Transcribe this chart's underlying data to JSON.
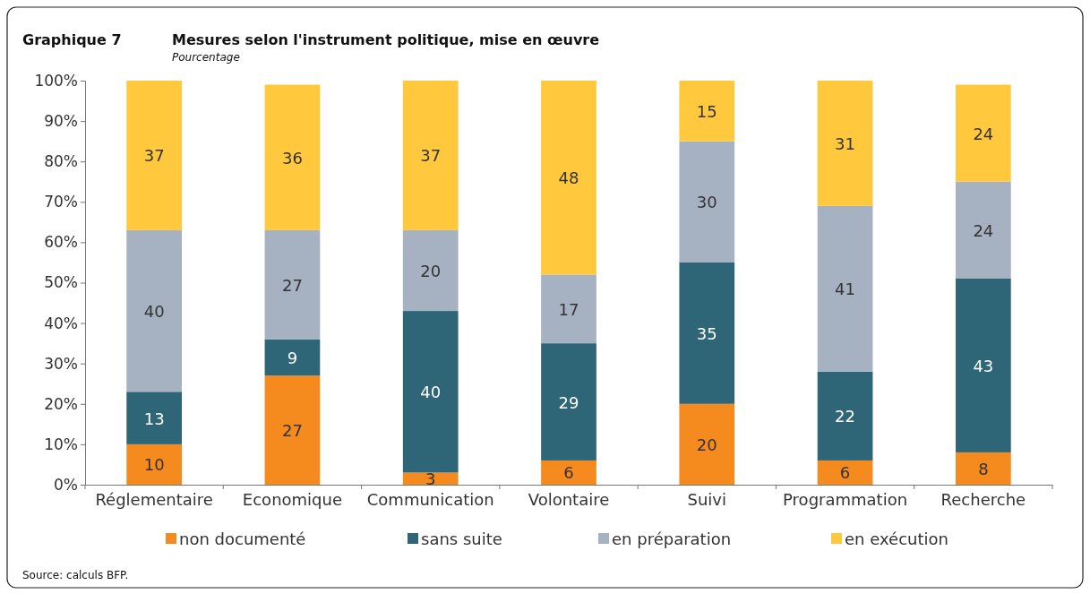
{
  "chart_data": {
    "type": "bar",
    "stacked": true,
    "title": "Mesures selon l'instrument politique, mise en œuvre",
    "subtitle": "Pourcentage",
    "annotations": [
      "Graphique 7",
      "Source: calculs BFP."
    ],
    "categories": [
      "Réglementaire",
      "Economique",
      "Communication",
      "Volontaire",
      "Suivi",
      "Programmation",
      "Recherche"
    ],
    "series": [
      {
        "name": "non documenté",
        "color": "#f58a1f",
        "values": [
          10,
          27,
          3,
          6,
          20,
          6,
          8
        ]
      },
      {
        "name": "sans suite",
        "color": "#2e6678",
        "values": [
          13,
          9,
          40,
          29,
          35,
          22,
          43
        ]
      },
      {
        "name": "en préparation",
        "color": "#a6b2c2",
        "values": [
          40,
          27,
          20,
          17,
          30,
          41,
          24
        ]
      },
      {
        "name": "en exécution",
        "color": "#ffc83d",
        "values": [
          37,
          36,
          37,
          48,
          15,
          31,
          24
        ]
      }
    ],
    "ylim": [
      0,
      100
    ],
    "yticks": [
      {
        "value": 0,
        "label": "0%"
      },
      {
        "value": 10,
        "label": "10%"
      },
      {
        "value": 20,
        "label": "20%"
      },
      {
        "value": 30,
        "label": "30%"
      },
      {
        "value": 40,
        "label": "40%"
      },
      {
        "value": 50,
        "label": "50%"
      },
      {
        "value": 60,
        "label": "60%"
      },
      {
        "value": 70,
        "label": "70%"
      },
      {
        "value": 80,
        "label": "80%"
      },
      {
        "value": 90,
        "label": "90%"
      },
      {
        "value": 100,
        "label": "100%"
      }
    ],
    "grid": false,
    "legend": "bottom",
    "data_labels": true
  }
}
